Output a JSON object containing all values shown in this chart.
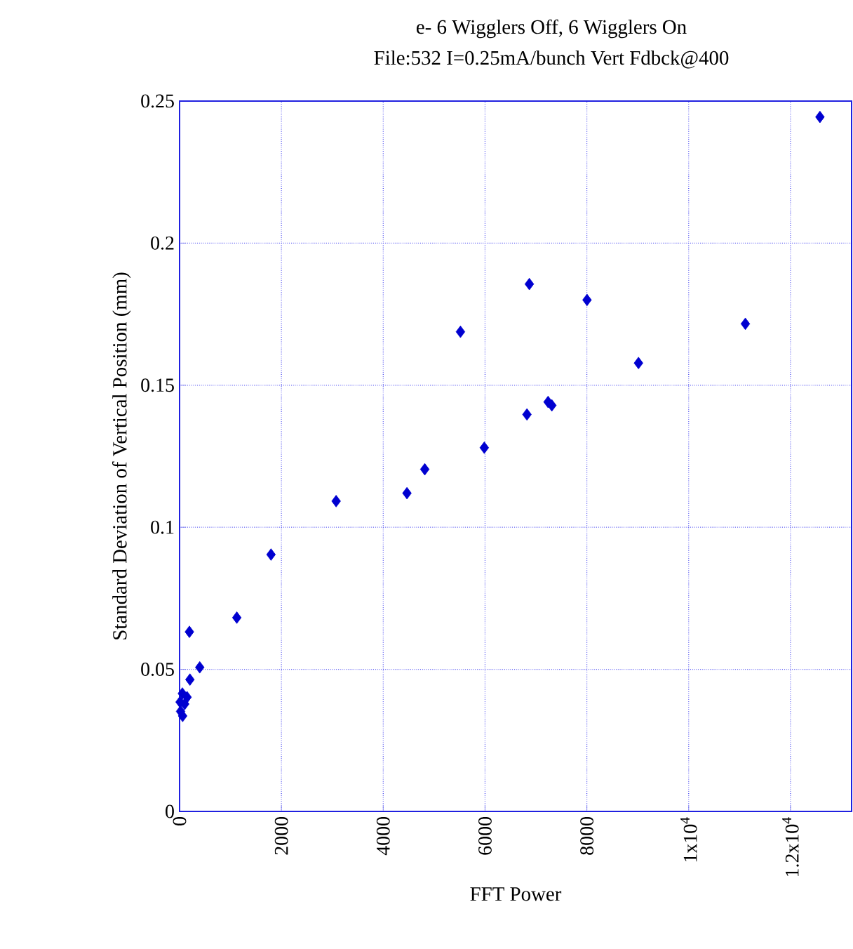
{
  "chart_data": {
    "type": "scatter",
    "title": "e-  6 Wigglers Off, 6 Wigglers On",
    "subtitle": "File:532 I=0.25mA/bunch Vert Fdbck@400",
    "xlabel": "FFT Power",
    "ylabel": "Standard Deviation of Vertical Position (mm)",
    "xlim": [
      0,
      13200
    ],
    "ylim": [
      0,
      0.25
    ],
    "xticks": [
      0,
      2000,
      4000,
      6000,
      8000,
      {
        "value": 10000,
        "label": "1x10$^{4}$"
      },
      {
        "value": 12000,
        "label": "1.2x10$^{4}$"
      }
    ],
    "yticks": [
      0,
      0.05,
      0.1,
      0.15,
      0.2,
      0.25
    ],
    "grid": true,
    "marker": "diamond",
    "series": [
      {
        "color": "#0000d0",
        "x": [
          12578,
          5517,
          6870,
          8003,
          11113,
          9014,
          6823,
          7238,
          7312,
          5985,
          4816,
          4466,
          3075,
          1796,
          1124,
          193,
          396,
          203,
          55,
          147,
          10,
          100,
          20,
          60
        ],
        "values": [
          0.2444,
          0.1688,
          0.1856,
          0.18,
          0.1716,
          0.1578,
          0.1397,
          0.1441,
          0.1429,
          0.128,
          0.1204,
          0.112,
          0.1092,
          0.0904,
          0.0682,
          0.0632,
          0.0507,
          0.0464,
          0.0415,
          0.0402,
          0.0385,
          0.0378,
          0.0352,
          0.0336
        ]
      }
    ]
  }
}
